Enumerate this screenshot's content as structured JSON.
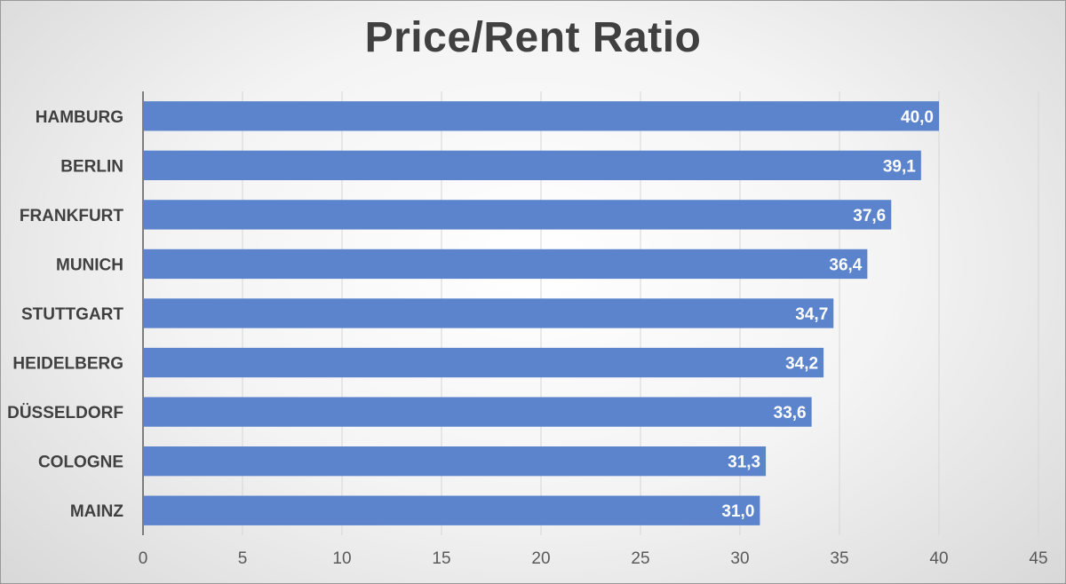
{
  "chart_data": {
    "type": "bar",
    "orientation": "horizontal",
    "title": "Price/Rent Ratio",
    "xlabel": "",
    "ylabel": "",
    "categories": [
      "HAMBURG",
      "BERLIN",
      "FRANKFURT",
      "MUNICH",
      "STUTTGART",
      "HEIDELBERG",
      "DÜSSELDORF",
      "COLOGNE",
      "MAINZ"
    ],
    "values": [
      40.0,
      39.1,
      37.6,
      36.4,
      34.7,
      34.2,
      33.6,
      31.3,
      31.0
    ],
    "data_labels": [
      "40,0",
      "39,1",
      "37,6",
      "36,4",
      "34,7",
      "34,2",
      "33,6",
      "31,3",
      "31,0"
    ],
    "xlim": [
      0,
      45
    ],
    "x_ticks": [
      0,
      5,
      10,
      15,
      20,
      25,
      30,
      35,
      40,
      45
    ],
    "grid": "vertical",
    "legend": "none",
    "colors": {
      "bar": "#5b84cc",
      "gridline": "#d6d6d6",
      "axis": "#595959",
      "title": "#404040"
    }
  }
}
